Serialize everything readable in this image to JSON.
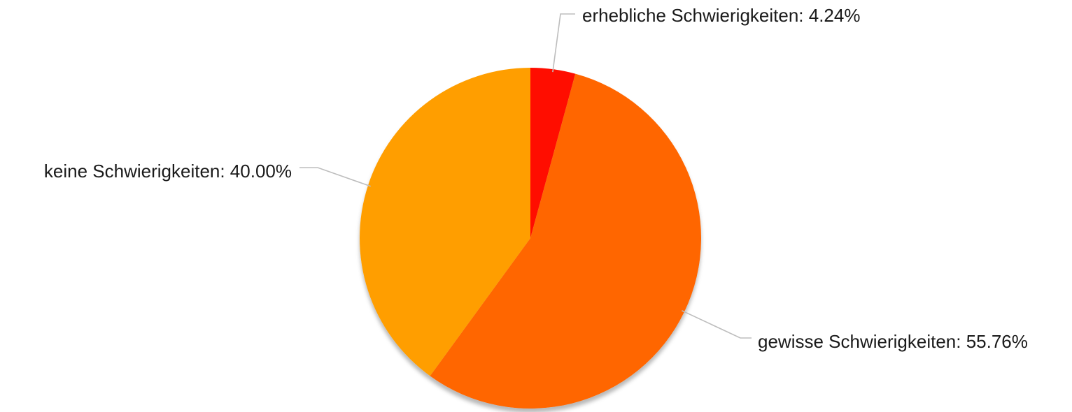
{
  "chart_data": {
    "type": "pie",
    "title": "",
    "start_angle_deg": 0,
    "direction": "clockwise",
    "slices": [
      {
        "label": "erhebliche Schwierigkeiten",
        "value": 4.24,
        "display": "erhebliche Schwierigkeiten: 4.24%",
        "color": "#ff1100"
      },
      {
        "label": "gewisse Schwierigkeiten",
        "value": 55.76,
        "display": "gewisse Schwierigkeiten: 55.76%",
        "color": "#ff6600"
      },
      {
        "label": "keine Schwierigkeiten",
        "value": 40.0,
        "display": "keine Schwierigkeiten: 40.00%",
        "color": "#ff9e00"
      }
    ]
  }
}
